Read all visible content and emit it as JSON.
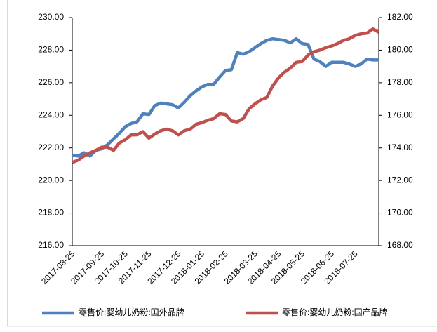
{
  "chart_data": {
    "type": "line",
    "categories": [
      "2017-08-25",
      null,
      null,
      null,
      null,
      "2017-09-25",
      null,
      null,
      null,
      "2017-10-25",
      null,
      null,
      null,
      "2017-11-25",
      null,
      null,
      null,
      null,
      "2017-12-25",
      null,
      null,
      null,
      "2018-01-25",
      null,
      null,
      null,
      "2018-02-25",
      null,
      null,
      null,
      null,
      "2018-03-25",
      null,
      null,
      null,
      "2018-04-25",
      null,
      null,
      null,
      "2018-05-25",
      null,
      null,
      null,
      null,
      "2018-06-25",
      null,
      null,
      null,
      "2018-07-25",
      null,
      null,
      null,
      null
    ],
    "series": [
      {
        "name": "零售价:婴幼儿奶粉:国外品牌",
        "color": "#4f81bd",
        "axis": "y",
        "values": [
          221.55,
          221.5,
          221.7,
          221.5,
          221.85,
          221.95,
          222.2,
          222.55,
          222.9,
          223.3,
          223.5,
          223.6,
          224.1,
          224.05,
          224.6,
          224.75,
          224.7,
          224.65,
          224.45,
          224.8,
          225.2,
          225.5,
          225.75,
          225.9,
          225.9,
          226.35,
          226.75,
          226.8,
          227.85,
          227.75,
          227.9,
          228.15,
          228.4,
          228.6,
          228.7,
          228.65,
          228.6,
          228.45,
          228.7,
          228.4,
          228.35,
          227.45,
          227.3,
          227.0,
          227.25,
          227.25,
          227.25,
          227.15,
          227.0,
          227.15,
          227.45,
          227.4,
          227.4
        ]
      },
      {
        "name": "零售价:婴幼儿奶粉:国产品牌",
        "color": "#c0504d",
        "axis": "y2",
        "values": [
          173.1,
          173.25,
          173.5,
          173.7,
          173.85,
          174.05,
          174.05,
          173.85,
          174.3,
          174.5,
          174.8,
          174.8,
          175.0,
          174.6,
          174.85,
          175.05,
          175.15,
          175.05,
          174.8,
          175.05,
          175.15,
          175.45,
          175.55,
          175.7,
          175.8,
          176.1,
          176.05,
          175.65,
          175.6,
          175.8,
          176.4,
          176.7,
          176.95,
          177.1,
          177.8,
          178.3,
          178.65,
          178.9,
          179.25,
          179.3,
          179.7,
          179.9,
          180.0,
          180.15,
          180.25,
          180.4,
          180.6,
          180.7,
          180.9,
          181.0,
          181.05,
          181.3,
          181.1
        ]
      }
    ],
    "ylim": [
      216,
      230
    ],
    "yticks": [
      {
        "value": 216,
        "label": "216.00"
      },
      {
        "value": 218,
        "label": "218.00"
      },
      {
        "value": 220,
        "label": "220.00"
      },
      {
        "value": 222,
        "label": "222.00"
      },
      {
        "value": 224,
        "label": "224.00"
      },
      {
        "value": 226,
        "label": "226.00"
      },
      {
        "value": 228,
        "label": "228.00"
      },
      {
        "value": 230,
        "label": "230.00"
      }
    ],
    "y2lim": [
      168,
      182
    ],
    "y2ticks": [
      {
        "value": 168,
        "label": "168.00"
      },
      {
        "value": 170,
        "label": "170.00"
      },
      {
        "value": 172,
        "label": "172.00"
      },
      {
        "value": 174,
        "label": "174.00"
      },
      {
        "value": 176,
        "label": "176.00"
      },
      {
        "value": 178,
        "label": "178.00"
      },
      {
        "value": 180,
        "label": "180.00"
      },
      {
        "value": 182,
        "label": "182.00"
      }
    ],
    "legend": "bottom"
  }
}
